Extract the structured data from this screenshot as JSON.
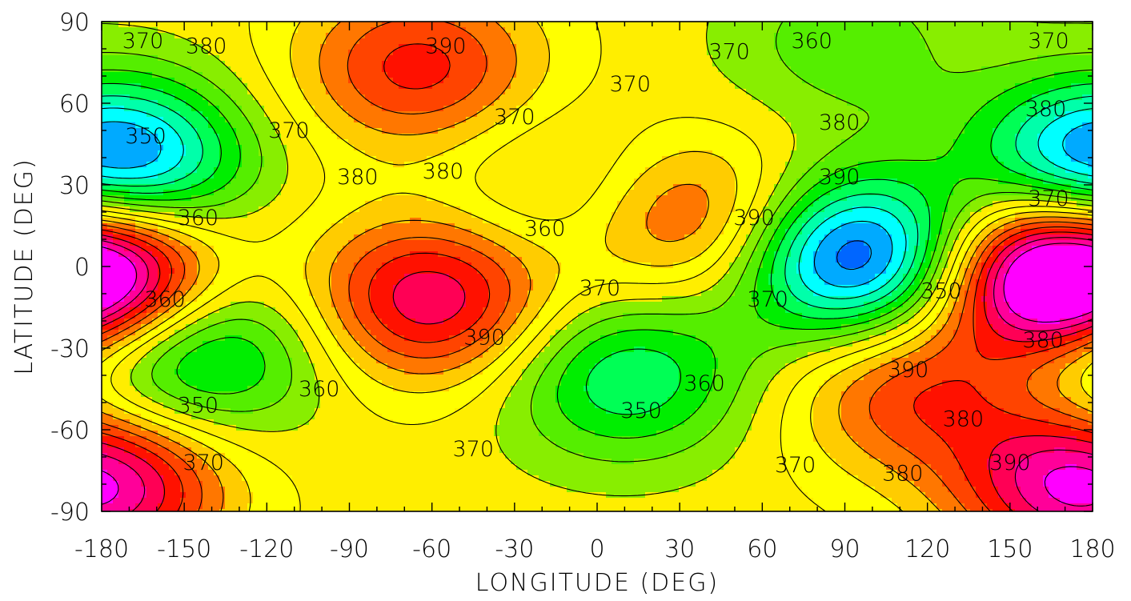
{
  "chart_data": {
    "type": "contour",
    "xlabel": "LONGITUDE (DEG)",
    "ylabel": "LATITUDE (DEG)",
    "xlim": [
      -180,
      180
    ],
    "ylim": [
      -90,
      90
    ],
    "xticks": [
      -180,
      -150,
      -120,
      -90,
      -60,
      -30,
      0,
      30,
      60,
      90,
      120,
      150,
      180
    ],
    "yticks": [
      90,
      60,
      30,
      0,
      -30,
      -60,
      -90
    ],
    "grid": false,
    "contour_levels": [
      320,
      325,
      330,
      335,
      340,
      345,
      350,
      355,
      360,
      365,
      370,
      375,
      380,
      385,
      390,
      395,
      400,
      405
    ],
    "fill_colors": {
      "320": "#0000ff",
      "325": "#0066ff",
      "330": "#00aaff",
      "335": "#00ffff",
      "340": "#00ffaa",
      "345": "#00ff55",
      "350": "#00ee00",
      "355": "#55ee00",
      "360": "#88ee00",
      "365": "#ffee00",
      "370": "#ffff00",
      "375": "#ffcc00",
      "380": "#ff7700",
      "385": "#ff4400",
      "390": "#ff1100",
      "395": "#ff0055",
      "400": "#ff0099",
      "405": "#ff00ff"
    },
    "field_centers": [
      {
        "lon": 95,
        "lat": 3,
        "peak": 320
      },
      {
        "lon": 165,
        "lat": -3,
        "peak": 407
      },
      {
        "lon": -180,
        "lat": -3,
        "peak": 400
      },
      {
        "lon": -60,
        "lat": -12,
        "peak": 400
      },
      {
        "lon": -172,
        "lat": 38,
        "peak": 345
      },
      {
        "lon": 180,
        "lat": 37,
        "peak": 345
      },
      {
        "lon": -143,
        "lat": -30,
        "peak": 345
      },
      {
        "lon": 10,
        "lat": -40,
        "peak": 345
      },
      {
        "lon": -10,
        "lat": 28,
        "peak": 357
      },
      {
        "lon": 115,
        "lat": -45,
        "peak": 390
      },
      {
        "lon": 35,
        "lat": 17,
        "peak": 392
      },
      {
        "lon": -65,
        "lat": 73,
        "peak": 392
      },
      {
        "lon": 175,
        "lat": -80,
        "peak": 392
      },
      {
        "lon": -180,
        "lat": -78,
        "peak": 385
      },
      {
        "lon": 90,
        "lat": 82,
        "peak": 357
      },
      {
        "lon": 180,
        "lat": -38,
        "peak": 356
      }
    ],
    "contour_labels": [
      {
        "text": "370",
        "lon": -165,
        "lat": 83
      },
      {
        "text": "380",
        "lon": -142,
        "lat": 81
      },
      {
        "text": "390",
        "lon": -55,
        "lat": 81
      },
      {
        "text": "370",
        "lon": 48,
        "lat": 79
      },
      {
        "text": "360",
        "lon": 78,
        "lat": 83
      },
      {
        "text": "370",
        "lon": 164,
        "lat": 83
      },
      {
        "text": "370",
        "lon": 12,
        "lat": 67
      },
      {
        "text": "370",
        "lon": -30,
        "lat": 55
      },
      {
        "text": "370",
        "lon": -112,
        "lat": 50
      },
      {
        "text": "380",
        "lon": 88,
        "lat": 53
      },
      {
        "text": "380",
        "lon": 163,
        "lat": 58
      },
      {
        "text": "350",
        "lon": -164,
        "lat": 48
      },
      {
        "text": "380",
        "lon": -87,
        "lat": 33
      },
      {
        "text": "380",
        "lon": -56,
        "lat": 35
      },
      {
        "text": "390",
        "lon": 88,
        "lat": 33
      },
      {
        "text": "370",
        "lon": 164,
        "lat": 25
      },
      {
        "text": "360",
        "lon": -145,
        "lat": 18
      },
      {
        "text": "360",
        "lon": -19,
        "lat": 14
      },
      {
        "text": "390",
        "lon": 57,
        "lat": 18
      },
      {
        "text": "370",
        "lon": 1,
        "lat": -8
      },
      {
        "text": "360",
        "lon": -157,
        "lat": -12
      },
      {
        "text": "370",
        "lon": 62,
        "lat": -12
      },
      {
        "text": "350",
        "lon": 125,
        "lat": -9
      },
      {
        "text": "390",
        "lon": -41,
        "lat": -26
      },
      {
        "text": "380",
        "lon": 162,
        "lat": -27
      },
      {
        "text": "360",
        "lon": -101,
        "lat": -45
      },
      {
        "text": "390",
        "lon": 113,
        "lat": -38
      },
      {
        "text": "360",
        "lon": 39,
        "lat": -43
      },
      {
        "text": "350",
        "lon": -145,
        "lat": -51
      },
      {
        "text": "350",
        "lon": 16,
        "lat": -53
      },
      {
        "text": "380",
        "lon": 133,
        "lat": -56
      },
      {
        "text": "370",
        "lon": -45,
        "lat": -67
      },
      {
        "text": "370",
        "lon": -143,
        "lat": -72
      },
      {
        "text": "370",
        "lon": 72,
        "lat": -73
      },
      {
        "text": "380",
        "lon": 111,
        "lat": -76
      },
      {
        "text": "390",
        "lon": 150,
        "lat": -72
      }
    ]
  }
}
